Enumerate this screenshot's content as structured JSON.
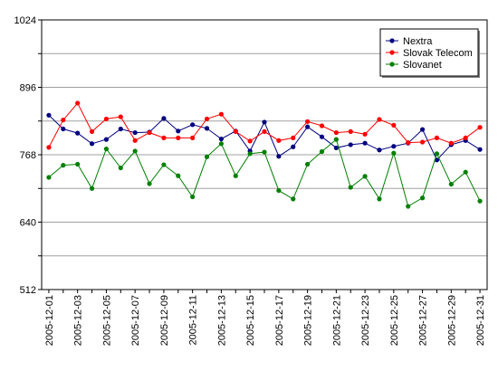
{
  "chart_data": {
    "type": "line",
    "title": "",
    "xlabel": "",
    "ylabel": "",
    "ylim": [
      512,
      1024
    ],
    "yticks": [
      512,
      640,
      768,
      896,
      1024
    ],
    "grid": true,
    "legend_position": "top-right",
    "x": [
      "2005-12-01",
      "2005-12-02",
      "2005-12-03",
      "2005-12-04",
      "2005-12-05",
      "2005-12-06",
      "2005-12-07",
      "2005-12-08",
      "2005-12-09",
      "2005-12-10",
      "2005-12-11",
      "2005-12-12",
      "2005-12-13",
      "2005-12-14",
      "2005-12-15",
      "2005-12-16",
      "2005-12-17",
      "2005-12-18",
      "2005-12-19",
      "2005-12-20",
      "2005-12-21",
      "2005-12-22",
      "2005-12-23",
      "2005-12-24",
      "2005-12-25",
      "2005-12-26",
      "2005-12-27",
      "2005-12-28",
      "2005-12-29",
      "2005-12-30",
      "2005-12-31"
    ],
    "xtick_labels": [
      "2005-12-01",
      "2005-12-03",
      "2005-12-05",
      "2005-12-07",
      "2005-12-09",
      "2005-12-11",
      "2005-12-13",
      "2005-12-15",
      "2005-12-17",
      "2005-12-19",
      "2005-12-21",
      "2005-12-23",
      "2005-12-25",
      "2005-12-27",
      "2005-12-29",
      "2005-12-31"
    ],
    "series": [
      {
        "name": "Nextra",
        "color": "#000080",
        "values": [
          843,
          817,
          809,
          789,
          797,
          817,
          810,
          811,
          837,
          813,
          825,
          818,
          798,
          813,
          775,
          830,
          765,
          783,
          821,
          802,
          781,
          787,
          790,
          777,
          784,
          790,
          816,
          758,
          787,
          795,
          778
        ]
      },
      {
        "name": "Slovak Telecom",
        "color": "#ff0000",
        "values": [
          782,
          834,
          866,
          812,
          836,
          840,
          795,
          810,
          800,
          800,
          800,
          836,
          845,
          812,
          794,
          812,
          795,
          800,
          831,
          823,
          810,
          812,
          807,
          835,
          824,
          791,
          792,
          800,
          790,
          800,
          820
        ]
      },
      {
        "name": "Slovanet",
        "color": "#008000",
        "values": [
          725,
          748,
          750,
          704,
          779,
          743,
          775,
          713,
          749,
          728,
          688,
          764,
          789,
          728,
          770,
          773,
          700,
          684,
          750,
          774,
          797,
          706,
          727,
          684,
          771,
          670,
          686,
          770,
          712,
          735,
          680
        ]
      }
    ]
  }
}
